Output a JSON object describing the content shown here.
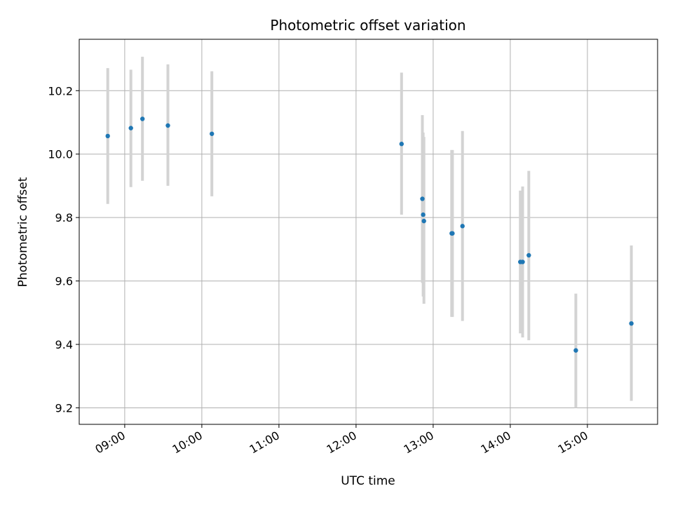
{
  "chart_data": {
    "type": "scatter",
    "title": "Photometric offset variation",
    "xlabel": "UTC time",
    "ylabel": "Photometric offset",
    "grid": true,
    "colors": {
      "point": "#1f77b4",
      "errorbar": "#d3d3d3",
      "grid": "#b0b0b0",
      "axis": "#000000"
    },
    "xlim": [
      8.41,
      15.91
    ],
    "ylim": [
      9.148,
      10.362
    ],
    "xticks": [
      9,
      10,
      11,
      12,
      13,
      14,
      15
    ],
    "xtick_labels": [
      "09:00",
      "10:00",
      "11:00",
      "12:00",
      "13:00",
      "14:00",
      "15:00"
    ],
    "yticks": [
      9.2,
      9.4,
      9.6,
      9.8,
      10.0,
      10.2
    ],
    "ytick_labels": [
      "9.2",
      "9.4",
      "9.6",
      "9.8",
      "10.0",
      "10.2"
    ],
    "series": [
      {
        "name": "offset",
        "points": [
          {
            "t": 8.78,
            "y": 10.057,
            "lo": 9.843,
            "hi": 10.271
          },
          {
            "t": 9.08,
            "y": 10.082,
            "lo": 9.896,
            "hi": 10.266
          },
          {
            "t": 9.23,
            "y": 10.111,
            "lo": 9.916,
            "hi": 10.307
          },
          {
            "t": 9.56,
            "y": 10.09,
            "lo": 9.9,
            "hi": 10.283
          },
          {
            "t": 10.13,
            "y": 10.064,
            "lo": 9.867,
            "hi": 10.261
          },
          {
            "t": 12.59,
            "y": 10.032,
            "lo": 9.809,
            "hi": 10.257
          },
          {
            "t": 12.86,
            "y": 9.859,
            "lo": 9.594,
            "hi": 10.123
          },
          {
            "t": 12.87,
            "y": 9.809,
            "lo": 9.551,
            "hi": 10.068
          },
          {
            "t": 12.88,
            "y": 9.789,
            "lo": 9.528,
            "hi": 10.054
          },
          {
            "t": 13.24,
            "y": 9.75,
            "lo": 9.487,
            "hi": 10.013
          },
          {
            "t": 13.25,
            "y": 9.75,
            "lo": 9.487,
            "hi": 10.013
          },
          {
            "t": 13.38,
            "y": 9.773,
            "lo": 9.474,
            "hi": 10.073
          },
          {
            "t": 14.13,
            "y": 9.66,
            "lo": 9.435,
            "hi": 9.885
          },
          {
            "t": 14.16,
            "y": 9.66,
            "lo": 9.422,
            "hi": 9.898
          },
          {
            "t": 14.24,
            "y": 9.681,
            "lo": 9.413,
            "hi": 9.947
          },
          {
            "t": 14.85,
            "y": 9.381,
            "lo": 9.2,
            "hi": 9.56
          },
          {
            "t": 15.57,
            "y": 9.466,
            "lo": 9.222,
            "hi": 9.712
          }
        ]
      }
    ]
  }
}
